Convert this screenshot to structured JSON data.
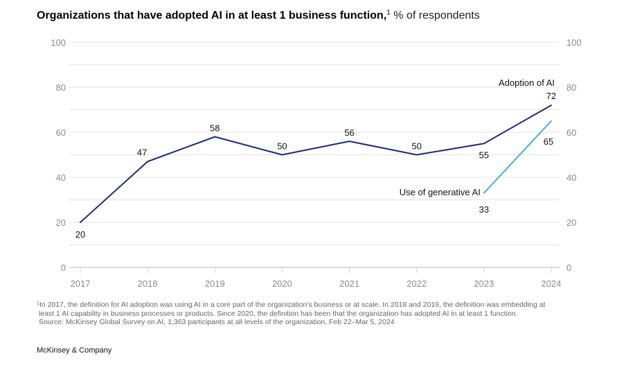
{
  "title": {
    "bold": "Organizations that have adopted AI in at least 1 business function,",
    "footnote_marker": "1",
    "unit": "% of respondents"
  },
  "chart_data": {
    "type": "line",
    "title": "Organizations that have adopted AI in at least 1 business function, % of respondents",
    "xlabel": "",
    "ylabel": "% of respondents",
    "x": [
      "2017",
      "2018",
      "2019",
      "2020",
      "2021",
      "2022",
      "2023",
      "2024"
    ],
    "ylim": [
      0,
      100
    ],
    "yticks": [
      "0",
      "20",
      "40",
      "60",
      "80",
      "100"
    ],
    "grid": true,
    "legend": "inline labels",
    "series": [
      {
        "name": "Adoption of AI",
        "color": "#1b2a7a",
        "values": [
          20,
          47,
          58,
          50,
          56,
          50,
          55,
          72
        ]
      },
      {
        "name": "Use of generative AI",
        "color": "#4aa8e8",
        "values": [
          null,
          null,
          null,
          null,
          null,
          null,
          33,
          65
        ]
      }
    ]
  },
  "footnote": {
    "marker": "1",
    "lines": [
      "In 2017, the definition for AI adoption was using AI in a core part of the organization’s business or at scale. In 2018 and 2019, the definition was embedding at",
      "least 1 AI capability in business processes or products. Since 2020, the definition has been that the organization has adopted AI in at least 1 function.",
      "Source: McKinsey Global Survey on AI, 1,363 participants at all levels of the organization, Feb 22–Mar 5, 2024"
    ]
  },
  "brand": "McKinsey & Company"
}
